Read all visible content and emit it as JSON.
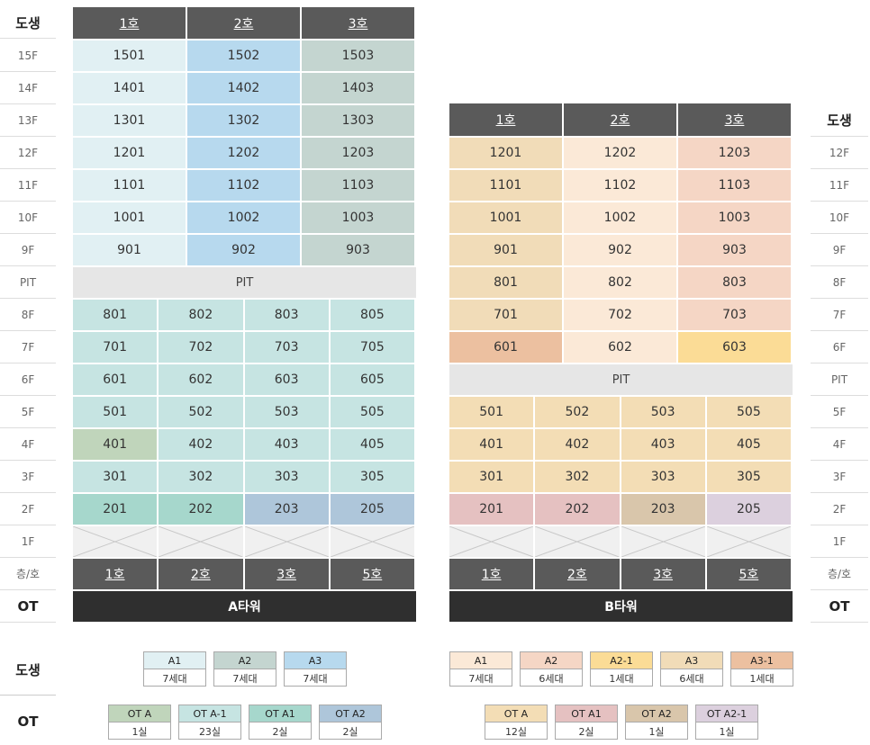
{
  "labels": {
    "dosaeng": "도생",
    "ot": "OT",
    "floor_unit": "층/호",
    "pit": "PIT"
  },
  "tower_a": {
    "name": "A타워",
    "upper_headers": [
      "1호",
      "2호",
      "3호"
    ],
    "upper_rows": [
      {
        "floor": "15F",
        "units": [
          "1501",
          "1502",
          "1503"
        ]
      },
      {
        "floor": "14F",
        "units": [
          "1401",
          "1402",
          "1403"
        ]
      },
      {
        "floor": "13F",
        "units": [
          "1301",
          "1302",
          "1303"
        ]
      },
      {
        "floor": "12F",
        "units": [
          "1201",
          "1202",
          "1203"
        ]
      },
      {
        "floor": "11F",
        "units": [
          "1101",
          "1102",
          "1103"
        ]
      },
      {
        "floor": "10F",
        "units": [
          "1001",
          "1002",
          "1003"
        ]
      },
      {
        "floor": "9F",
        "units": [
          "901",
          "902",
          "903"
        ]
      }
    ],
    "upper_colors": [
      "#e1f0f3",
      "#b7d9ee",
      "#c4d5d0"
    ],
    "pit_floor": "PIT",
    "lower_rows": [
      {
        "floor": "8F",
        "units": [
          "801",
          "802",
          "803",
          "805"
        ]
      },
      {
        "floor": "7F",
        "units": [
          "701",
          "702",
          "703",
          "705"
        ]
      },
      {
        "floor": "6F",
        "units": [
          "601",
          "602",
          "603",
          "605"
        ]
      },
      {
        "floor": "5F",
        "units": [
          "501",
          "502",
          "503",
          "505"
        ]
      },
      {
        "floor": "4F",
        "units": [
          "401",
          "402",
          "403",
          "405"
        ]
      },
      {
        "floor": "3F",
        "units": [
          "301",
          "302",
          "303",
          "305"
        ]
      },
      {
        "floor": "2F",
        "units": [
          "201",
          "202",
          "203",
          "205"
        ]
      }
    ],
    "lower_color": "#c6e4e2",
    "unit_401_color": "#c0d5bb",
    "row2_colors": [
      "#a6d7cc",
      "#a6d7cc",
      "#aec6da",
      "#aec6da"
    ],
    "floor_1": "1F",
    "bottom_headers": [
      "1호",
      "2호",
      "3호",
      "5호"
    ]
  },
  "tower_b": {
    "name": "B타워",
    "upper_headers": [
      "1호",
      "2호",
      "3호"
    ],
    "upper_rows": [
      {
        "floor": "12F",
        "units": [
          "1201",
          "1202",
          "1203"
        ]
      },
      {
        "floor": "11F",
        "units": [
          "1101",
          "1102",
          "1103"
        ]
      },
      {
        "floor": "10F",
        "units": [
          "1001",
          "1002",
          "1003"
        ]
      },
      {
        "floor": "9F",
        "units": [
          "901",
          "902",
          "903"
        ]
      },
      {
        "floor": "8F",
        "units": [
          "801",
          "802",
          "803"
        ]
      },
      {
        "floor": "7F",
        "units": [
          "701",
          "702",
          "703"
        ]
      },
      {
        "floor": "6F",
        "units": [
          "601",
          "602",
          "603"
        ]
      }
    ],
    "upper_colors": [
      "#f1dcb8",
      "#fbe9d7",
      "#f5d6c5"
    ],
    "unit_601_color": "#ecc0a0",
    "unit_603_color": "#fbdc96",
    "pit_floor": "PIT",
    "lower_rows": [
      {
        "floor": "5F",
        "units": [
          "501",
          "502",
          "503",
          "505"
        ]
      },
      {
        "floor": "4F",
        "units": [
          "401",
          "402",
          "403",
          "405"
        ]
      },
      {
        "floor": "3F",
        "units": [
          "301",
          "302",
          "303",
          "305"
        ]
      },
      {
        "floor": "2F",
        "units": [
          "201",
          "202",
          "203",
          "205"
        ]
      }
    ],
    "lower_color": "#f3ddb5",
    "row2_colors": [
      "#e5c1c1",
      "#e5c1c1",
      "#d9c6ab",
      "#dcd0de"
    ],
    "floor_1": "1F",
    "bottom_headers": [
      "1호",
      "2호",
      "3호",
      "5호"
    ]
  },
  "legend_a_dosaeng": [
    {
      "name": "A1",
      "count": "7세대",
      "color": "#e1f0f3"
    },
    {
      "name": "A2",
      "count": "7세대",
      "color": "#c4d5d0"
    },
    {
      "name": "A3",
      "count": "7세대",
      "color": "#b7d9ee"
    }
  ],
  "legend_a_ot": [
    {
      "name": "OT A",
      "count": "1실",
      "color": "#c0d5bb"
    },
    {
      "name": "OT A-1",
      "count": "23실",
      "color": "#c6e4e2"
    },
    {
      "name": "OT A1",
      "count": "2실",
      "color": "#a6d7cc"
    },
    {
      "name": "OT A2",
      "count": "2실",
      "color": "#aec6da"
    }
  ],
  "legend_b_dosaeng": [
    {
      "name": "A1",
      "count": "7세대",
      "color": "#fbe9d7"
    },
    {
      "name": "A2",
      "count": "6세대",
      "color": "#f5d6c5"
    },
    {
      "name": "A2-1",
      "count": "1세대",
      "color": "#fbdc96"
    },
    {
      "name": "A3",
      "count": "6세대",
      "color": "#f1dcb8"
    },
    {
      "name": "A3-1",
      "count": "1세대",
      "color": "#ecc0a0"
    }
  ],
  "legend_b_ot": [
    {
      "name": "OT A",
      "count": "12실",
      "color": "#f3ddb5"
    },
    {
      "name": "OT A1",
      "count": "2실",
      "color": "#e5c1c1"
    },
    {
      "name": "OT A2",
      "count": "1실",
      "color": "#d9c6ab"
    },
    {
      "name": "OT A2-1",
      "count": "1실",
      "color": "#dcd0de"
    }
  ]
}
